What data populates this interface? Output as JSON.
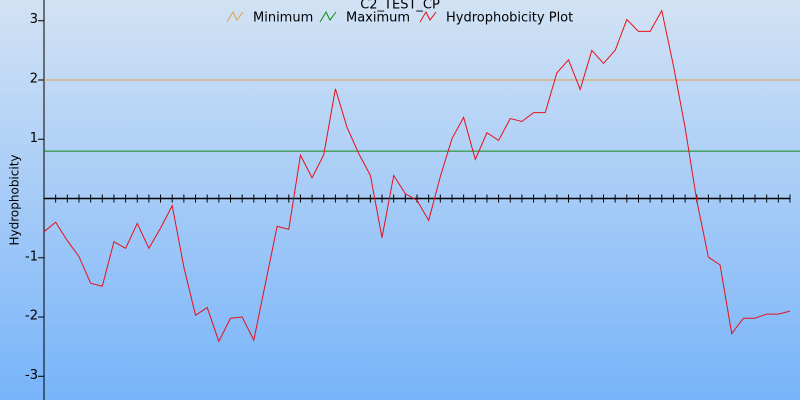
{
  "chart_data": {
    "type": "line",
    "title": "C2_TEST_CP",
    "y_label": "Hydrophobicity",
    "ylim": [
      -3.4,
      3.35
    ],
    "yticks": [
      -3,
      -2,
      -1,
      1,
      2,
      3
    ],
    "thresholds": [
      {
        "name": "Minimum",
        "color": "#e0a040",
        "value": 2
      },
      {
        "name": "Maximum",
        "color": "#118811",
        "value": 0.8
      }
    ],
    "series": [
      {
        "name": "Hydrophobicity Plot",
        "color": "#e8101a",
        "values": [
          -0.56,
          -0.4,
          -0.71,
          -0.98,
          -1.43,
          -1.48,
          -0.73,
          -0.84,
          -0.42,
          -0.84,
          -0.5,
          -0.12,
          -1.16,
          -1.97,
          -1.84,
          -2.41,
          -2.02,
          -2.0,
          -2.39,
          -1.43,
          -0.47,
          -0.52,
          0.73,
          0.35,
          0.74,
          1.85,
          1.2,
          0.76,
          0.39,
          -0.66,
          0.39,
          0.08,
          -0.03,
          -0.37,
          0.37,
          1.01,
          1.37,
          0.66,
          1.11,
          0.98,
          1.35,
          1.3,
          1.45,
          1.45,
          2.12,
          2.34,
          1.84,
          2.5,
          2.28,
          2.5,
          3.02,
          2.82,
          2.82,
          3.17,
          2.24,
          1.2,
          -0.03,
          -0.99,
          -1.12,
          -2.28,
          -2.02,
          -2.02,
          -1.95,
          -1.95,
          -1.9
        ]
      }
    ]
  }
}
